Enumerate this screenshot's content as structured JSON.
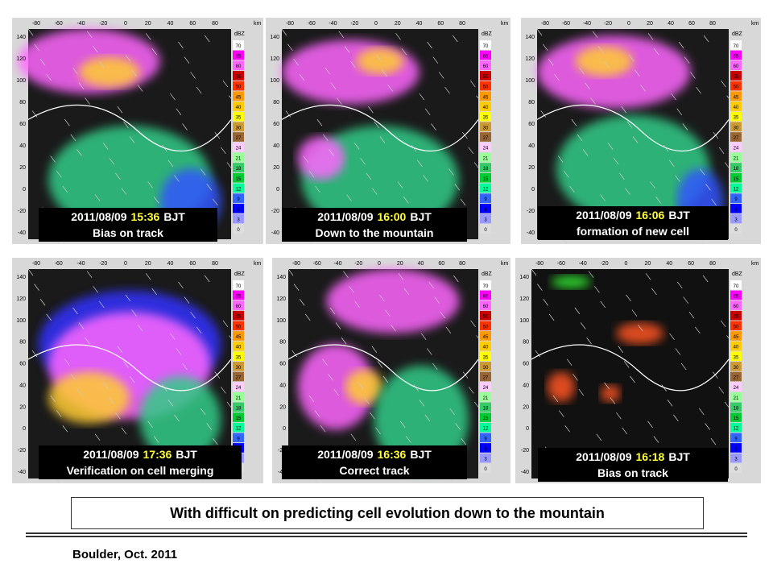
{
  "panels": [
    {
      "date": "2011/08/09",
      "time": "15:36",
      "zone": "BJT",
      "caption": "Bias on track"
    },
    {
      "date": "2011/08/09",
      "time": "16:00",
      "zone": "BJT",
      "caption": "Down to the mountain"
    },
    {
      "date": "2011/08/09",
      "time": "16:06",
      "zone": "BJT",
      "caption": "formation of new cell"
    },
    {
      "date": "2011/08/09",
      "time": "17:36",
      "zone": "BJT",
      "caption": "Verification on cell merging"
    },
    {
      "date": "2011/08/09",
      "time": "16:36",
      "zone": "BJT",
      "caption": "Correct track"
    },
    {
      "date": "2011/08/09",
      "time": "16:18",
      "zone": "BJT",
      "caption": "Bias on track"
    }
  ],
  "x_axis": {
    "unit": "km",
    "ticks": [
      "-80",
      "-60",
      "-40",
      "-20",
      "0",
      "20",
      "40",
      "60",
      "80"
    ]
  },
  "y_axis": {
    "ticks": [
      "140",
      "120",
      "100",
      "80",
      "60",
      "40",
      "20",
      "0",
      "-20",
      "-40"
    ]
  },
  "colorbar": {
    "unit": "dBZ",
    "labels": [
      "70",
      "65",
      "60",
      "55",
      "50",
      "45",
      "40",
      "35",
      "30",
      "27",
      "24",
      "21",
      "18",
      "15",
      "12",
      "9",
      "6",
      "3",
      "0"
    ]
  },
  "summary": "With difficult on predicting cell evolution down to the mountain",
  "footer": "Boulder, Oct. 2011"
}
